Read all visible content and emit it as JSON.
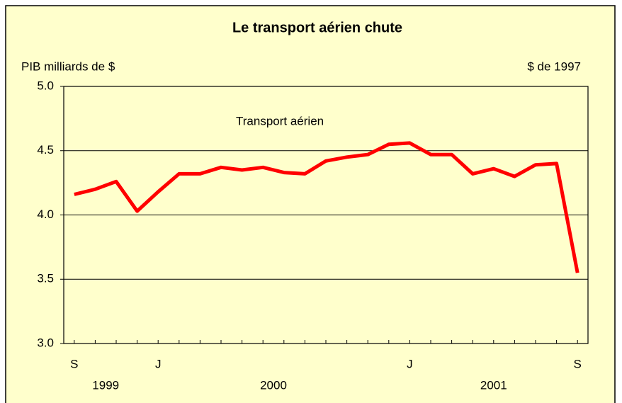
{
  "chart_data": {
    "type": "line",
    "title": "Le transport aérien chute",
    "y_label": "PIB milliards de $",
    "unit_note": "$ de 1997",
    "annotation": "Transport aérien",
    "categories": [
      "S",
      null,
      null,
      null,
      "J",
      null,
      null,
      null,
      null,
      null,
      null,
      null,
      null,
      null,
      null,
      null,
      "J",
      null,
      null,
      null,
      null,
      null,
      null,
      null,
      "S"
    ],
    "groups": [
      {
        "label": "1999",
        "span": 4
      },
      {
        "label": "2000",
        "span": 12
      },
      {
        "label": "2001",
        "span": 9
      }
    ],
    "series": [
      {
        "name": "Transport aérien",
        "color": "#ff0000",
        "values": [
          4.16,
          4.2,
          4.26,
          4.03,
          4.18,
          4.32,
          4.32,
          4.37,
          4.35,
          4.37,
          4.33,
          4.32,
          4.42,
          4.45,
          4.47,
          4.55,
          4.56,
          4.47,
          4.47,
          4.32,
          4.36,
          4.3,
          4.39,
          4.4,
          3.55
        ]
      }
    ],
    "ylim": [
      3,
      5
    ],
    "yticks": [
      {
        "value": 3,
        "label": "3.0"
      },
      {
        "value": 3.5,
        "label": "3.5"
      },
      {
        "value": 4,
        "label": "4.0"
      },
      {
        "value": 4.5,
        "label": "4.5"
      },
      {
        "value": 5,
        "label": "5.0"
      }
    ],
    "grid": true
  }
}
